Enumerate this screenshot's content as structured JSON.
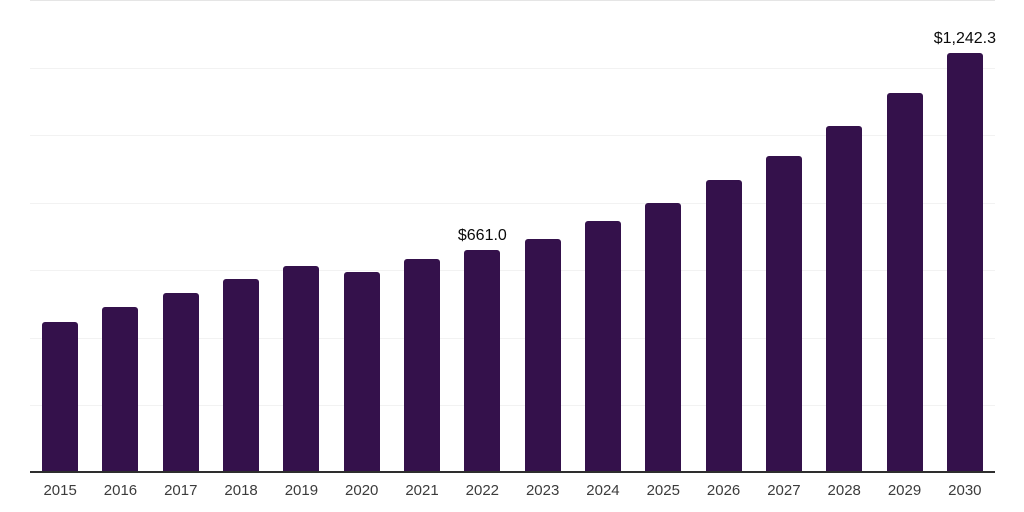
{
  "chart_data": {
    "type": "bar",
    "title": "",
    "xlabel": "",
    "ylabel": "",
    "categories": [
      "2015",
      "2016",
      "2017",
      "2018",
      "2019",
      "2020",
      "2021",
      "2022",
      "2023",
      "2024",
      "2025",
      "2026",
      "2027",
      "2028",
      "2029",
      "2030"
    ],
    "values": [
      446,
      490,
      534,
      575,
      614,
      596,
      634,
      661.0,
      694,
      747,
      800,
      868,
      938,
      1027,
      1124,
      1242.3
    ],
    "data_labels": [
      "",
      "",
      "",
      "",
      "",
      "",
      "",
      "$661.0",
      "",
      "",
      "",
      "",
      "",
      "",
      "",
      "$1,242.3"
    ],
    "ylim": [
      0,
      1400
    ],
    "gridline_step": 200,
    "grid": true,
    "legend": false,
    "bar_color": "#34114b",
    "axis_line_color": "#2e2e2e",
    "gridline_color": "#f2f2f2",
    "top_gridline_color": "#e5e5e5",
    "data_label_color": "#0a0a0a",
    "tick_label_color": "#3c3c3c"
  }
}
